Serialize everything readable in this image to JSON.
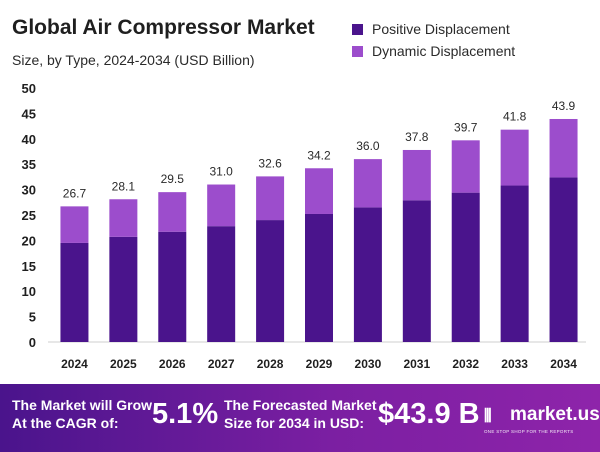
{
  "header": {
    "title": "Global Air Compressor  Market",
    "subtitle": "Size, by Type, 2024-2034 (USD Billion)"
  },
  "colors": {
    "positive": "#4a148c",
    "dynamic": "#9c4dcc",
    "banner_start": "#4a148c",
    "banner_end": "#8e24aa"
  },
  "chart_data": {
    "type": "bar",
    "stacked": true,
    "title": "Global Air Compressor  Market",
    "subtitle": "Size, by Type, 2024-2034 (USD Billion)",
    "xlabel": "",
    "ylabel": "",
    "ylim": [
      0,
      50
    ],
    "yticks": [
      0,
      5,
      10,
      15,
      20,
      25,
      30,
      35,
      40,
      45,
      50
    ],
    "categories": [
      "2024",
      "2025",
      "2026",
      "2027",
      "2028",
      "2029",
      "2030",
      "2031",
      "2032",
      "2033",
      "2034"
    ],
    "series": [
      {
        "name": "Positive Displacement",
        "values": [
          19.5,
          20.7,
          21.7,
          22.8,
          24.0,
          25.2,
          26.5,
          27.9,
          29.4,
          30.8,
          32.4
        ]
      },
      {
        "name": "Dynamic Displacement",
        "values": [
          7.2,
          7.4,
          7.8,
          8.2,
          8.6,
          9.0,
          9.5,
          9.9,
          10.3,
          11.0,
          11.5
        ]
      }
    ],
    "totals": [
      "26.7",
      "28.1",
      "29.5",
      "31.0",
      "32.6",
      "34.2",
      "36.0",
      "37.8",
      "39.7",
      "41.8",
      "43.9"
    ],
    "legend_position": "top-right",
    "grid": false
  },
  "banner": {
    "cagr_text_line1": "The Market will Grow",
    "cagr_text_line2": "At the CAGR of:",
    "cagr_value": "5.1%",
    "forecast_text_line1": "The Forecasted Market",
    "forecast_text_line2": "Size for 2034 in USD:",
    "forecast_value": "$43.9 B",
    "logo_icon": "market-us-logo-icon",
    "logo_name": "market.us",
    "logo_tagline": "ONE STOP SHOP FOR THE REPORTS"
  }
}
